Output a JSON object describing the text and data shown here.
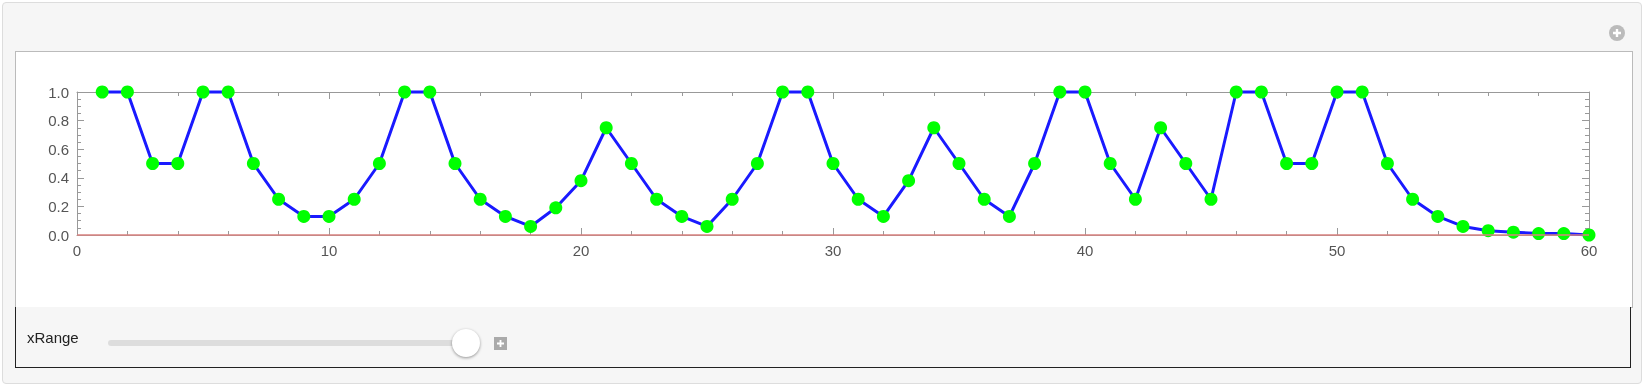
{
  "chart_data": {
    "type": "line",
    "x": [
      1,
      2,
      3,
      4,
      5,
      6,
      7,
      8,
      9,
      10,
      11,
      12,
      13,
      14,
      15,
      16,
      17,
      18,
      19,
      20,
      21,
      22,
      23,
      24,
      25,
      26,
      27,
      28,
      29,
      30,
      31,
      32,
      33,
      34,
      35,
      36,
      37,
      38,
      39,
      40,
      41,
      42,
      43,
      44,
      45,
      46,
      47,
      48,
      49,
      50,
      51,
      52,
      53,
      54,
      55,
      56,
      57,
      58,
      59,
      60
    ],
    "series": [
      {
        "color": "#1a1aff",
        "colors": [
          "#00ff00",
          "#00ff00",
          "#00ff00",
          "#00ff00",
          "#00ff00",
          "#00ff00",
          "#00ff00",
          "#00ff00",
          "#00ff00",
          "#00ff00",
          "#00ff00",
          "#00ff00",
          "#00ff00",
          "#00ff00",
          "#00ff00",
          "#00ff00",
          "#00ff00",
          "#00ff00",
          "#00ff00",
          "#00ff00",
          "#00ff00",
          "#00ff00",
          "#00ff00",
          "#00ff00",
          "#00ff00",
          "#00ff00",
          "#00ff00",
          "#00ff00",
          "#00ff00",
          "#00ff00",
          "#00ff00",
          "#00ff00",
          "#00ff00",
          "#00ff00",
          "#00ff00",
          "#00ff00",
          "#00ff00",
          "#00ff00",
          "#00ff00",
          "#00ff00",
          "#00ff00",
          "#00ff00",
          "#00ff00",
          "#00ff00",
          "#00ff00",
          "#00ff00",
          "#00ff00",
          "#00ff00",
          "#00ff00",
          "#00ff00",
          "#00ff00",
          "#00ff00",
          "#00ff00",
          "#00ff00",
          "#00ff00",
          "#00ff00",
          "#00ff00",
          "#00ff00",
          "#00ff00",
          "#00ff00"
        ],
        "values": [
          1,
          1,
          0.5,
          0.5,
          1,
          1,
          0.5,
          0.25,
          0.13,
          0.13,
          0.25,
          0.5,
          1,
          1,
          0.5,
          0.25,
          0.13,
          0.06,
          0.19,
          0.38,
          0.75,
          0.5,
          0.25,
          0.13,
          0.06,
          0.25,
          0.5,
          1,
          1,
          0.5,
          0.25,
          0.13,
          0.38,
          0.75,
          0.5,
          0.25,
          0.13,
          0.5,
          1,
          1,
          0.5,
          0.25,
          0.75,
          0.5,
          0.25,
          1,
          1,
          0.5,
          0.5,
          1,
          1,
          0.5,
          0.25,
          0.13,
          0.06,
          0.03,
          0.02,
          0.01,
          0.01,
          0
        ]
      }
    ],
    "xlim": [
      0,
      60
    ],
    "xticks": [
      0,
      10,
      20,
      30,
      40,
      50,
      60
    ],
    "ylim": [
      0,
      1
    ],
    "yticks": [
      {
        "value": 0,
        "label": "0.0"
      },
      0.2,
      0.4,
      0.6,
      0.8,
      {
        "value": 1,
        "label": "1.0"
      }
    ],
    "marker": "circle",
    "grid": false,
    "ref_lines": [
      {
        "axis": "y",
        "value": 0,
        "color": "#d9827f"
      }
    ],
    "annotations": [
      "xRange"
    ]
  }
}
